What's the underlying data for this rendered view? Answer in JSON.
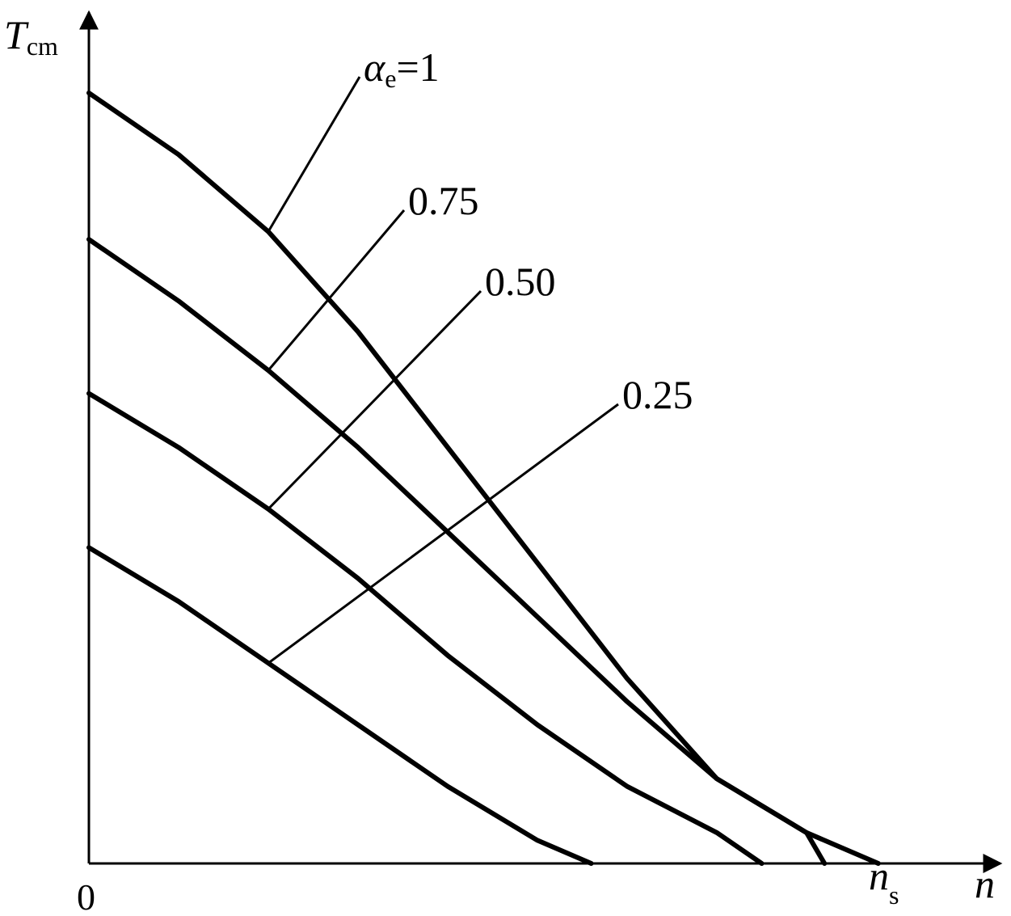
{
  "chart_data": {
    "type": "line",
    "axes": {
      "y_label": "T",
      "y_label_sub": "cm",
      "x_label": "n",
      "origin_label": "0",
      "x_tick_label": "n",
      "x_tick_label_sub": "s"
    },
    "xlim": [
      0,
      1.0
    ],
    "ylim": [
      0,
      1.0
    ],
    "x_tick_value": 0.88,
    "series": [
      {
        "alpha_symbol": "α",
        "alpha_sub": "e",
        "label": "=1",
        "points": [
          [
            0.0,
            1.0
          ],
          [
            0.1,
            0.92
          ],
          [
            0.2,
            0.82
          ],
          [
            0.3,
            0.69
          ],
          [
            0.4,
            0.54
          ],
          [
            0.5,
            0.39
          ],
          [
            0.6,
            0.24
          ],
          [
            0.7,
            0.11
          ],
          [
            0.8,
            0.04
          ],
          [
            0.88,
            0.0
          ]
        ]
      },
      {
        "label": "0.75",
        "points": [
          [
            0.0,
            0.81
          ],
          [
            0.1,
            0.73
          ],
          [
            0.2,
            0.64
          ],
          [
            0.3,
            0.54
          ],
          [
            0.4,
            0.43
          ],
          [
            0.5,
            0.32
          ],
          [
            0.6,
            0.21
          ],
          [
            0.7,
            0.11
          ],
          [
            0.8,
            0.04
          ],
          [
            0.82,
            0.0
          ]
        ]
      },
      {
        "label": "0.50",
        "points": [
          [
            0.0,
            0.61
          ],
          [
            0.1,
            0.54
          ],
          [
            0.2,
            0.46
          ],
          [
            0.3,
            0.37
          ],
          [
            0.4,
            0.27
          ],
          [
            0.5,
            0.18
          ],
          [
            0.6,
            0.1
          ],
          [
            0.7,
            0.04
          ],
          [
            0.75,
            0.0
          ]
        ]
      },
      {
        "label": "0.25",
        "points": [
          [
            0.0,
            0.41
          ],
          [
            0.1,
            0.34
          ],
          [
            0.2,
            0.26
          ],
          [
            0.3,
            0.18
          ],
          [
            0.4,
            0.1
          ],
          [
            0.5,
            0.03
          ],
          [
            0.56,
            0.0
          ]
        ]
      }
    ],
    "grid": false,
    "legend": "none"
  }
}
